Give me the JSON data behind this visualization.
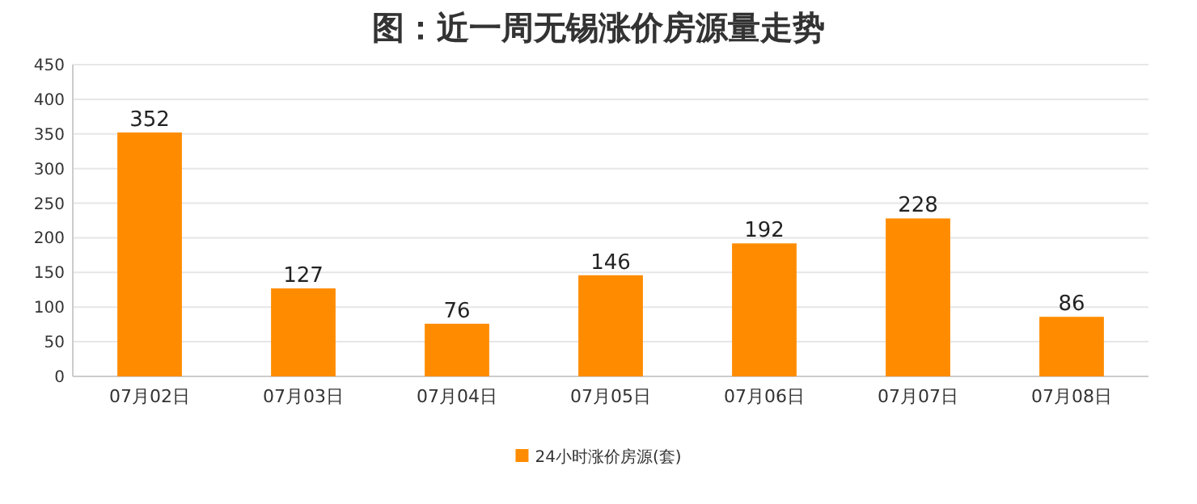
{
  "chart_data": {
    "type": "bar",
    "title": "图：近一周无锡涨价房源量走势",
    "categories": [
      "07月02日",
      "07月03日",
      "07月04日",
      "07月05日",
      "07月06日",
      "07月07日",
      "07月08日"
    ],
    "series": [
      {
        "name": "24小时涨价房源(套)",
        "color": "#ff8c00",
        "values": [
          352,
          127,
          76,
          146,
          192,
          228,
          86
        ]
      }
    ],
    "ylim": [
      0,
      450
    ],
    "yticks": [
      0,
      50,
      100,
      150,
      200,
      250,
      300,
      350,
      400,
      450
    ],
    "grid": "y",
    "legend": "bottom",
    "data_labels": true
  }
}
